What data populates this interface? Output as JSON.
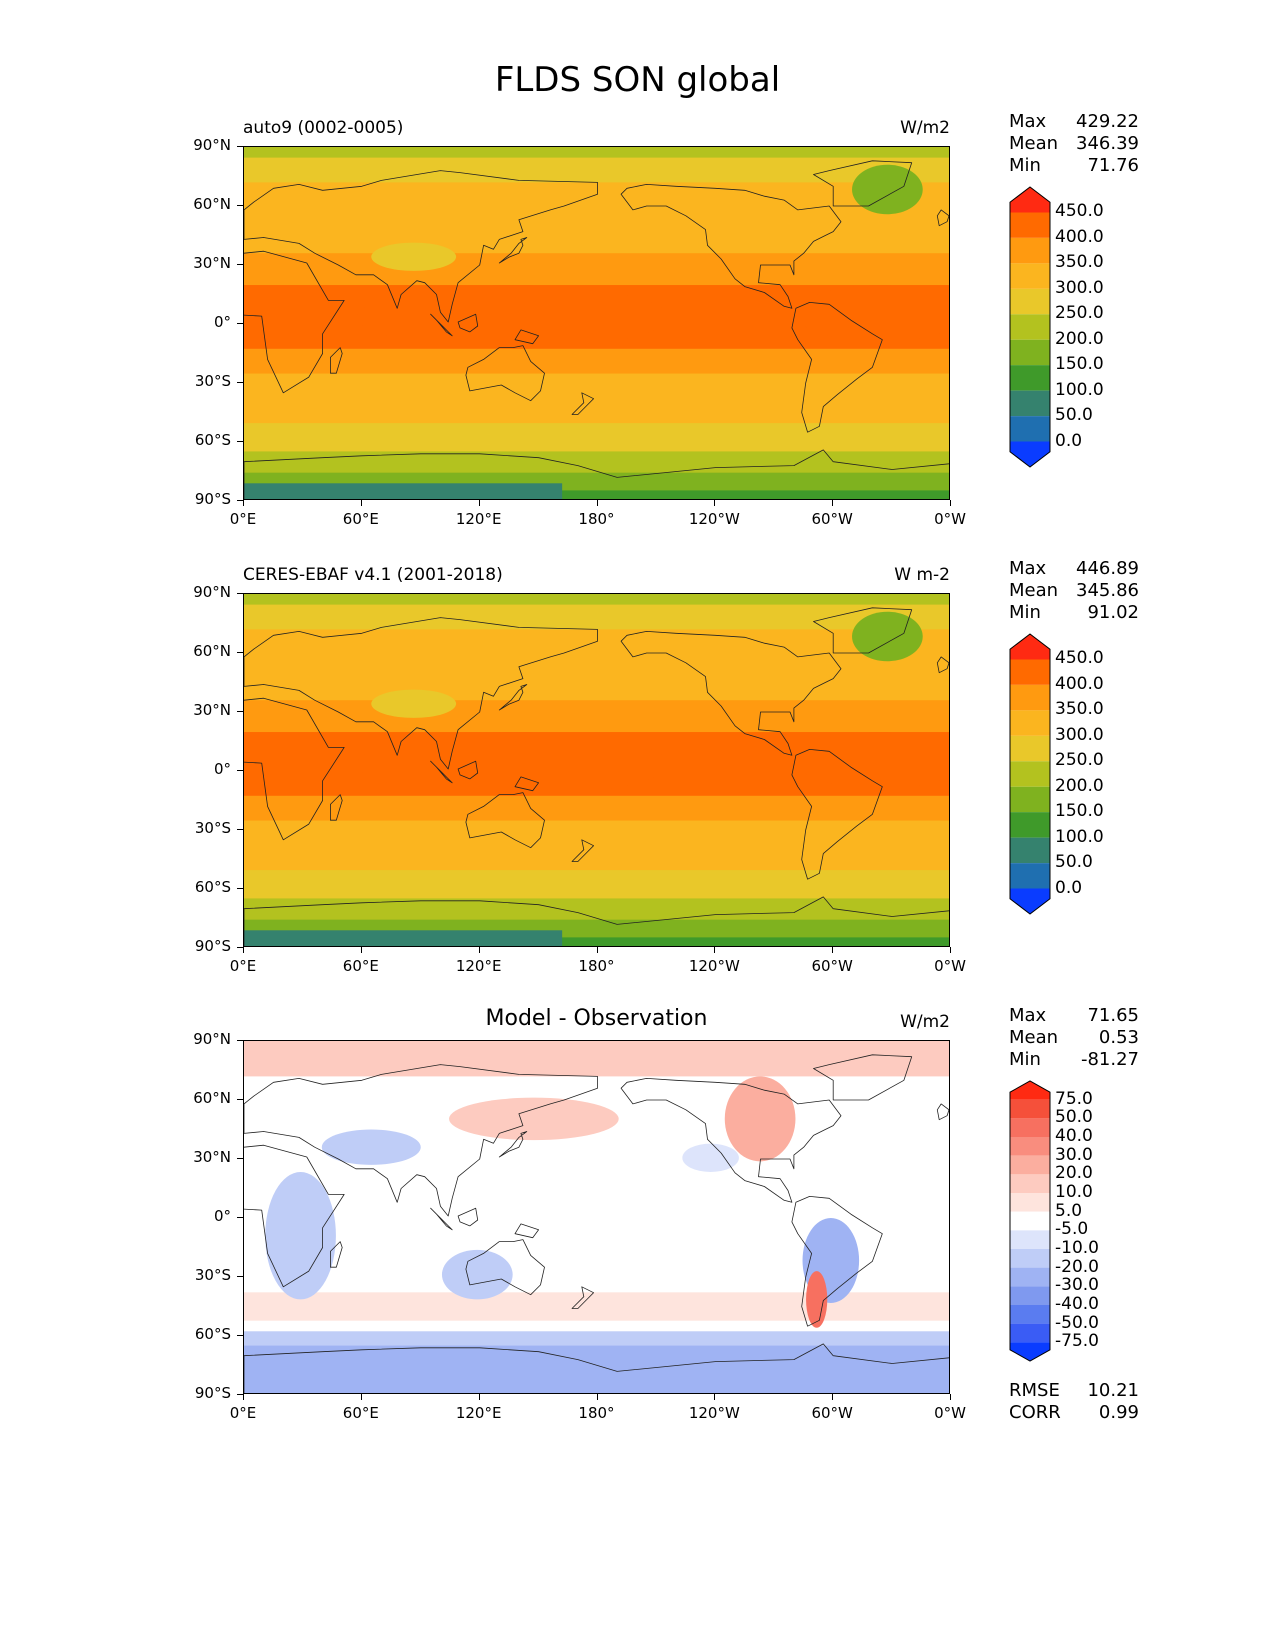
{
  "title": "FLDS SON global",
  "panels": [
    {
      "id": "model",
      "left_label": "auto9 (0002-0005)",
      "center_label": "",
      "units": "W/m2",
      "stats": [
        {
          "label": "Max",
          "value": "429.22"
        },
        {
          "label": "Mean",
          "value": "346.39"
        },
        {
          "label": "Min",
          "value": "71.76"
        }
      ],
      "colorbar": {
        "type": "absolute",
        "labels": [
          "450.0",
          "400.0",
          "350.0",
          "300.0",
          "250.0",
          "200.0",
          "150.0",
          "100.0",
          "50.0",
          "0.0"
        ],
        "colors": [
          "#ff2a12",
          "#ff6a00",
          "#ff9a10",
          "#fbb51f",
          "#e9c82a",
          "#b3c21f",
          "#7fb21f",
          "#3f9a2a",
          "#35826e",
          "#1f6fb0",
          "#0a3cff"
        ]
      }
    },
    {
      "id": "obs",
      "left_label": "CERES-EBAF v4.1 (2001-2018)",
      "center_label": "",
      "units": "W m-2",
      "stats": [
        {
          "label": "Max",
          "value": "446.89"
        },
        {
          "label": "Mean",
          "value": "345.86"
        },
        {
          "label": "Min",
          "value": "91.02"
        }
      ],
      "colorbar": {
        "type": "absolute",
        "labels": [
          "450.0",
          "400.0",
          "350.0",
          "300.0",
          "250.0",
          "200.0",
          "150.0",
          "100.0",
          "50.0",
          "0.0"
        ],
        "colors": [
          "#ff2a12",
          "#ff6a00",
          "#ff9a10",
          "#fbb51f",
          "#e9c82a",
          "#b3c21f",
          "#7fb21f",
          "#3f9a2a",
          "#35826e",
          "#1f6fb0",
          "#0a3cff"
        ]
      }
    },
    {
      "id": "diff",
      "left_label": "",
      "center_label": "Model - Observation",
      "units": "W/m2",
      "stats": [
        {
          "label": "Max",
          "value": "71.65"
        },
        {
          "label": "Mean",
          "value": "0.53"
        },
        {
          "label": "Min",
          "value": "-81.27"
        }
      ],
      "extra_stats": [
        {
          "label": "RMSE",
          "value": "10.21"
        },
        {
          "label": "CORR",
          "value": "0.99"
        }
      ],
      "colorbar": {
        "type": "diff",
        "labels": [
          "75.0",
          "50.0",
          "40.0",
          "30.0",
          "20.0",
          "10.0",
          "5.0",
          "-5.0",
          "-10.0",
          "-20.0",
          "-30.0",
          "-40.0",
          "-50.0",
          "-75.0"
        ],
        "colors": [
          "#ff2a12",
          "#f5503a",
          "#f77060",
          "#f98d7e",
          "#fbae9f",
          "#fdcbc0",
          "#fee4dd",
          "#ffffff",
          "#dde4fb",
          "#bfcdf7",
          "#9fb3f3",
          "#7f99ef",
          "#5a7cf0",
          "#3a5cf5",
          "#0a3cff"
        ]
      }
    }
  ],
  "axes": {
    "yticks": [
      "90°N",
      "60°N",
      "30°N",
      "0°",
      "30°S",
      "60°S",
      "90°S"
    ],
    "xticks": [
      "0°E",
      "60°E",
      "120°E",
      "180°",
      "120°W",
      "60°W",
      "0°W"
    ]
  }
}
